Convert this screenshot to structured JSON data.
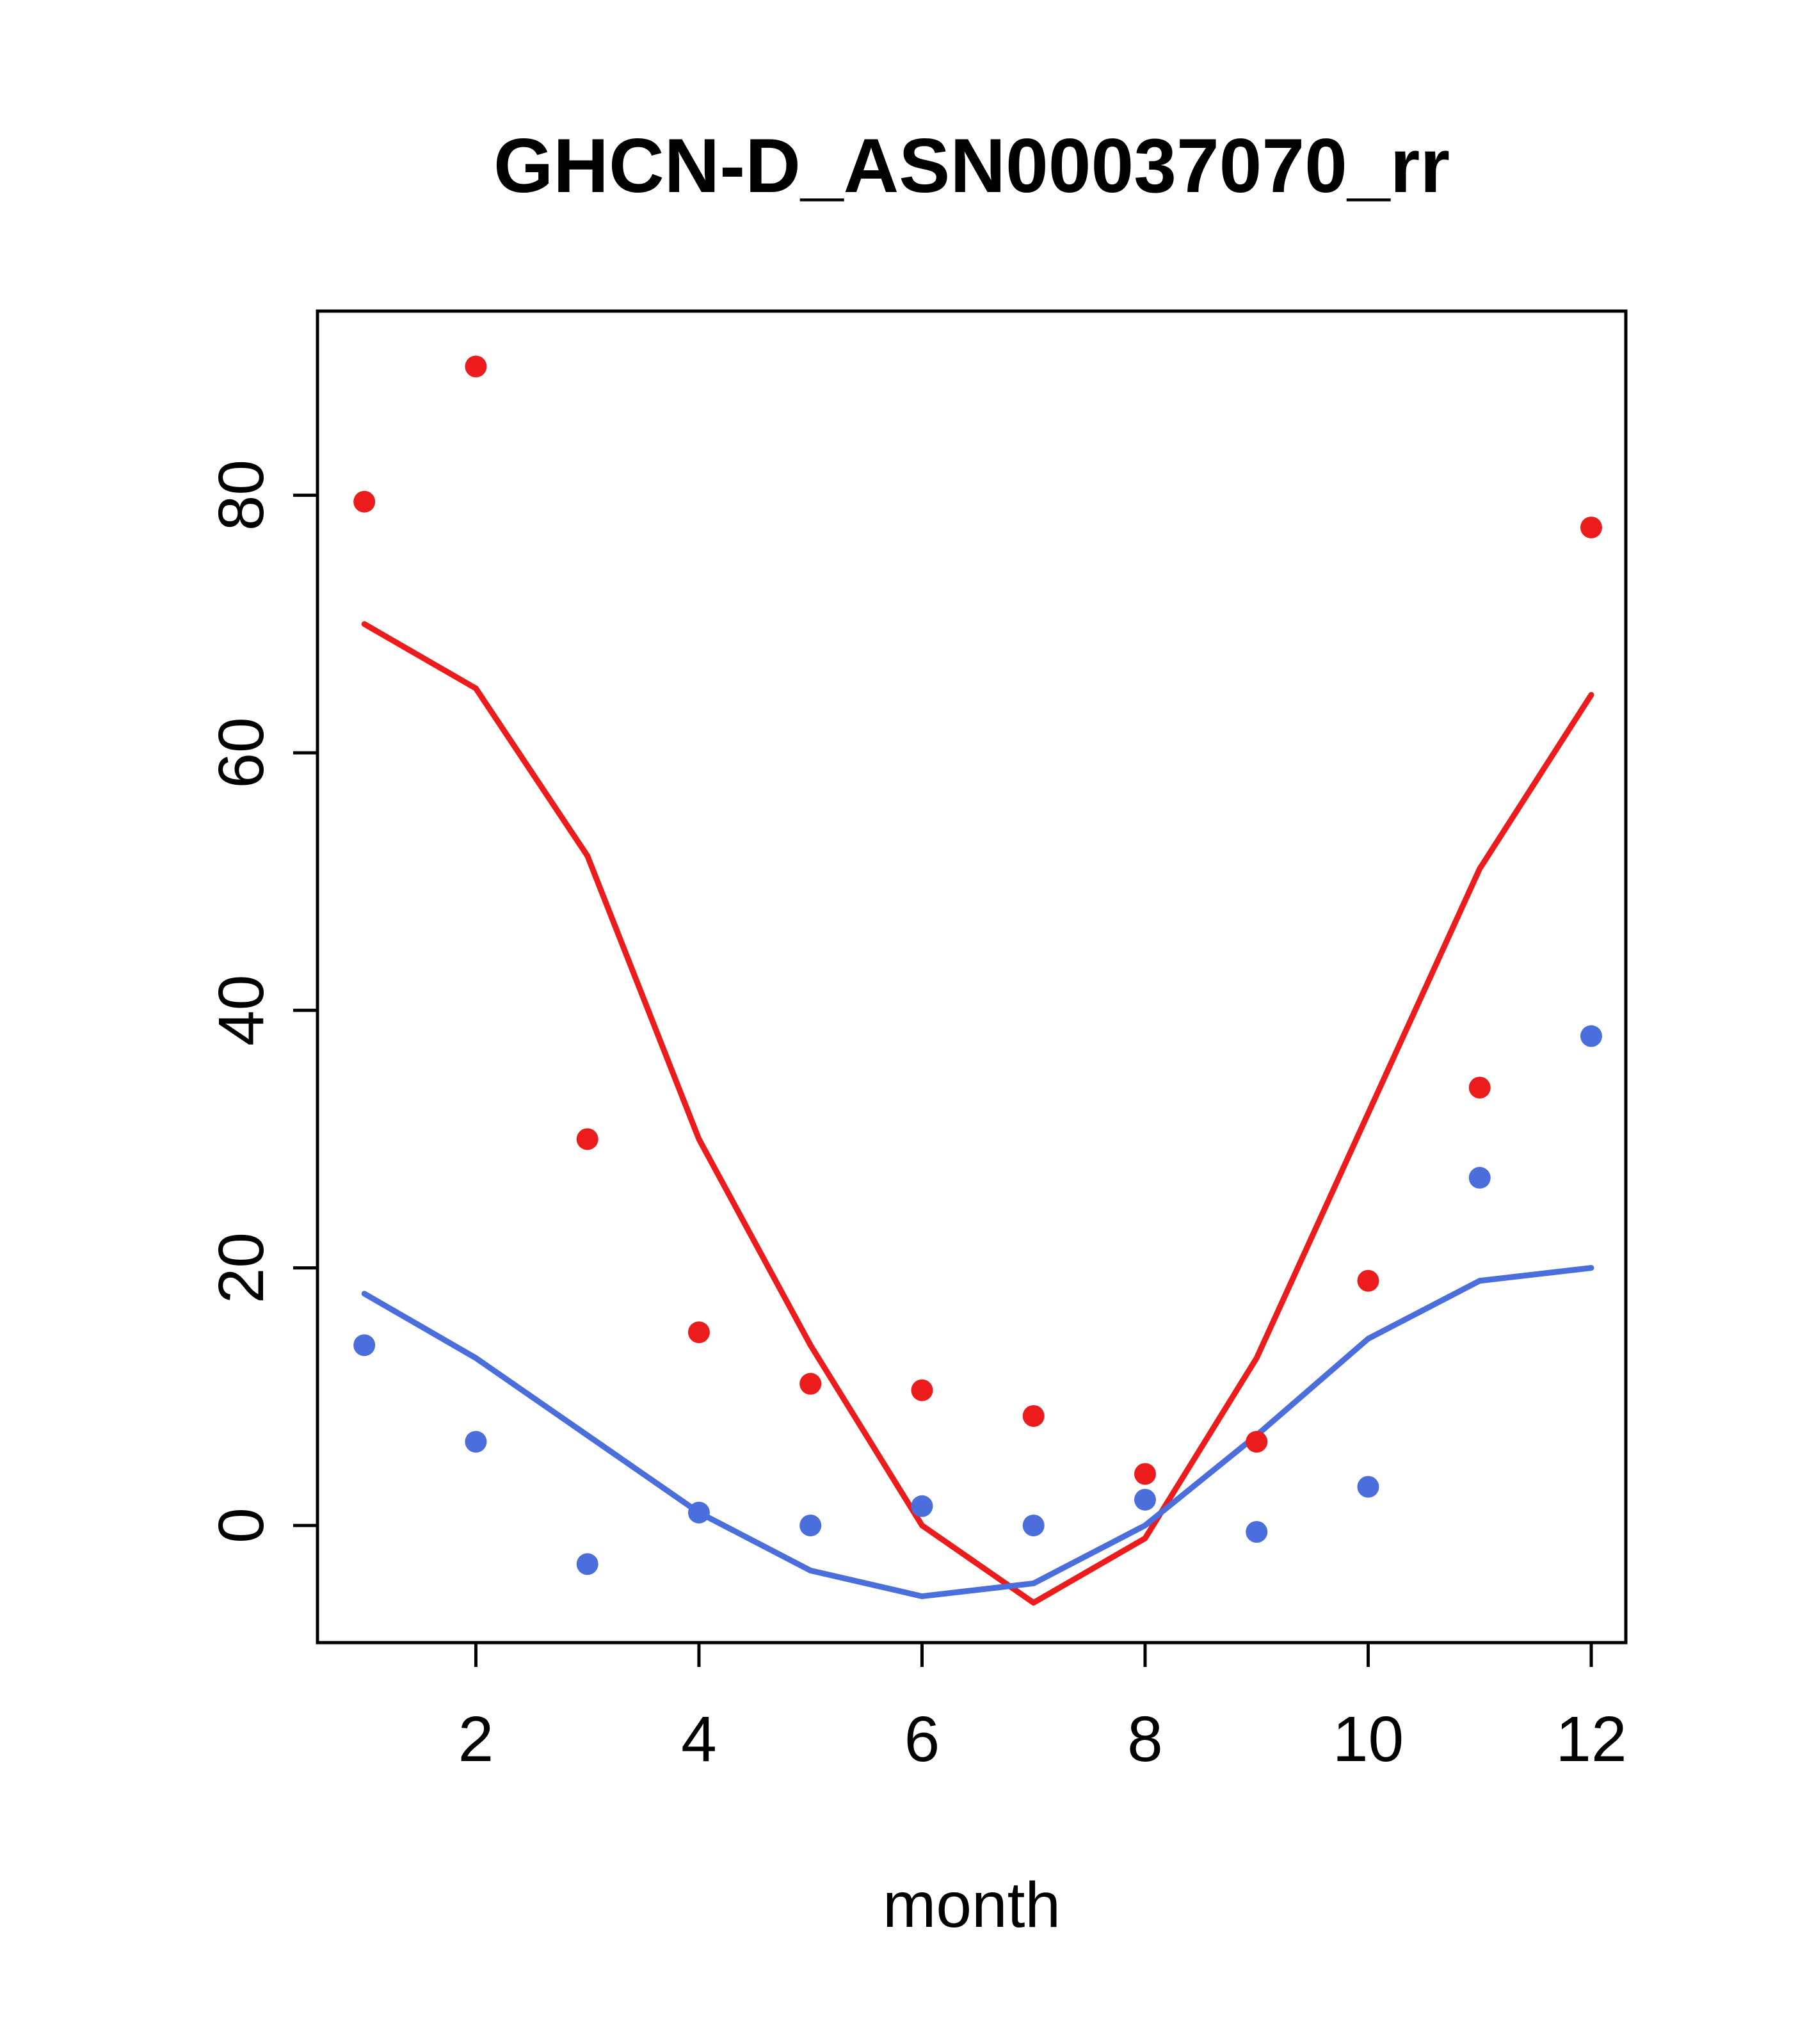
{
  "chart_data": {
    "type": "scatter",
    "title": "GHCN-D_ASN00037070_rr",
    "xlabel": "month",
    "ylabel": "",
    "x": [
      1,
      2,
      3,
      4,
      5,
      6,
      7,
      8,
      9,
      10,
      11,
      12
    ],
    "xticks": [
      2,
      4,
      6,
      8,
      10,
      12
    ],
    "yticks": [
      0,
      20,
      40,
      60,
      80
    ],
    "xlim": [
      0.58,
      12.31
    ],
    "ylim": [
      -9.1,
      94.3
    ],
    "grid": false,
    "legend": "none",
    "colors": {
      "red": "#EC1C1C",
      "blue": "#4A6FDC",
      "axis": "#000000"
    },
    "series": [
      {
        "name": "red-line",
        "type": "line",
        "color": "#EC1C1C",
        "values": [
          70,
          65,
          52,
          30,
          14,
          0,
          -6,
          -1,
          13,
          32,
          51,
          64.5
        ]
      },
      {
        "name": "blue-line",
        "type": "line",
        "color": "#4A6FDC",
        "values": [
          18,
          13,
          7,
          1,
          -3.5,
          -5.5,
          -4.5,
          0,
          7,
          14.5,
          19,
          20
        ]
      },
      {
        "name": "red-points",
        "type": "points",
        "color": "#EC1C1C",
        "values": [
          79.5,
          90,
          30,
          15,
          11,
          10.5,
          8.5,
          4,
          6.5,
          19,
          34,
          77.5
        ]
      },
      {
        "name": "blue-points",
        "type": "points",
        "color": "#4A6FDC",
        "values": [
          14,
          6.5,
          -3,
          1,
          0,
          1.5,
          0,
          2,
          -0.5,
          3,
          27,
          38
        ]
      }
    ]
  }
}
